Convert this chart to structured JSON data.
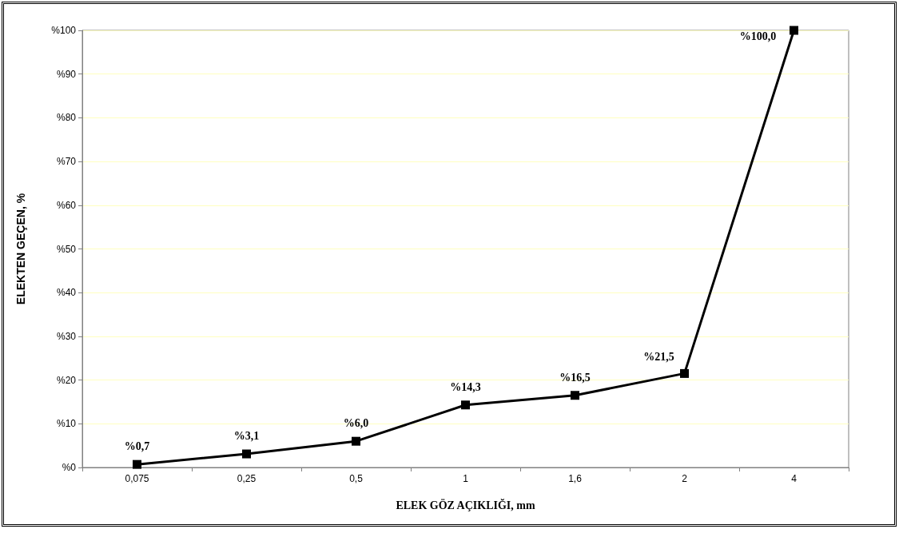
{
  "chart_data": {
    "type": "line",
    "xlabel": "ELEK GÖZ AÇIKLIĞI, mm",
    "ylabel": "ELEKTEN GEÇEN, %",
    "categories": [
      "0,075",
      "0,25",
      "0,5",
      "1",
      "1,6",
      "2",
      "4"
    ],
    "series": [
      {
        "color": "#000000",
        "values": [
          0.7,
          3.1,
          6.0,
          14.3,
          16.5,
          21.5,
          100.0
        ],
        "value_labels": [
          "%0,7",
          "%3,1",
          "%6,0",
          "%14,3",
          "%16,5",
          "%21,5",
          "%100,0"
        ]
      }
    ],
    "ylim": [
      0,
      100
    ],
    "yticks": [
      {
        "value": 0,
        "label": "%0"
      },
      {
        "value": 10,
        "label": "%10"
      },
      {
        "value": 20,
        "label": "%20"
      },
      {
        "value": 30,
        "label": "%30"
      },
      {
        "value": 40,
        "label": "%40"
      },
      {
        "value": 50,
        "label": "%50"
      },
      {
        "value": 60,
        "label": "%60"
      },
      {
        "value": 70,
        "label": "%70"
      },
      {
        "value": 80,
        "label": "%80"
      },
      {
        "value": 90,
        "label": "%90"
      },
      {
        "value": 100,
        "label": "%100"
      }
    ],
    "grid": "y",
    "marker": "square",
    "line_style": "solid"
  }
}
